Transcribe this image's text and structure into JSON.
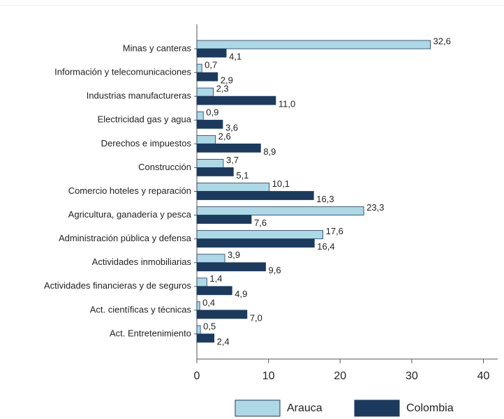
{
  "chart_data": {
    "type": "bar",
    "orientation": "horizontal",
    "categories": [
      "Minas y canteras",
      "Información y telecomunicaciones",
      "Industrias manufactureras",
      "Electricidad gas y agua",
      "Derechos e impuestos",
      "Construcción",
      "Comercio hoteles y reparación",
      "Agricultura, ganadería y pesca",
      "Administración pública y defensa",
      "Actividades inmobiliarias",
      "Actividades financieras y de seguros",
      "Act. científicas y técnicas",
      "Act. Entretenimiento"
    ],
    "series": [
      {
        "name": "Arauca",
        "color": "#add8e6",
        "values": [
          32.6,
          0.7,
          2.3,
          0.9,
          2.6,
          3.7,
          10.1,
          23.3,
          17.6,
          3.9,
          1.4,
          0.4,
          0.5
        ],
        "value_labels": [
          "32,6",
          "0,7",
          "2,3",
          "0,9",
          "2,6",
          "3,7",
          "10,1",
          "23,3",
          "17,6",
          "3,9",
          "1,4",
          "0,4",
          "0,5"
        ]
      },
      {
        "name": "Colombia",
        "color": "#1b3a5e",
        "values": [
          4.1,
          2.9,
          11.0,
          3.6,
          8.9,
          5.1,
          16.3,
          7.6,
          16.4,
          9.6,
          4.9,
          7.0,
          2.4
        ],
        "value_labels": [
          "4,1",
          "2,9",
          "11,0",
          "3,6",
          "8,9",
          "5,1",
          "16,3",
          "7,6",
          "16,4",
          "9,6",
          "4,9",
          "7,0",
          "2,4"
        ]
      }
    ],
    "xlim": [
      0,
      42
    ],
    "xticks": [
      0,
      10,
      20,
      30,
      40
    ],
    "legend": "bottom"
  }
}
